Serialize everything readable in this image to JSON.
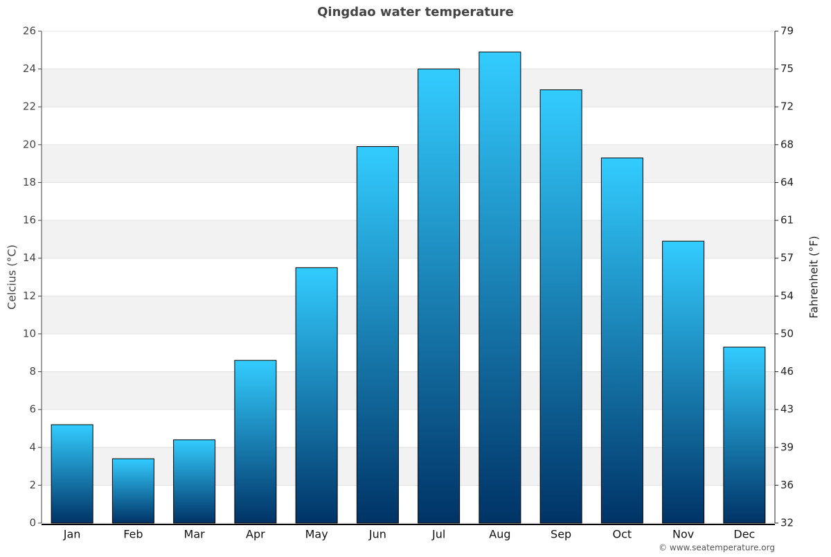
{
  "chart_data": {
    "type": "bar",
    "title": "Qingdao water temperature",
    "categories": [
      "Jan",
      "Feb",
      "Mar",
      "Apr",
      "May",
      "Jun",
      "Jul",
      "Aug",
      "Sep",
      "Oct",
      "Nov",
      "Dec"
    ],
    "values": [
      5.2,
      3.4,
      4.4,
      8.6,
      13.5,
      19.9,
      24.0,
      24.9,
      22.9,
      19.3,
      14.9,
      9.3
    ],
    "color": [
      "#33ccff",
      "#003366"
    ],
    "ylabel": "Celcius (°C)",
    "y2label": "Fahrenheit (°F)",
    "ylim": [
      0,
      26
    ],
    "yticks": [
      0,
      2,
      4,
      6,
      8,
      10,
      12,
      14,
      16,
      18,
      20,
      22,
      24,
      26
    ],
    "y2lim": [
      32,
      78.8
    ],
    "y2ticks": [
      32,
      {
        "value": 35.6,
        "label": "36"
      },
      {
        "value": 39.2,
        "label": "39"
      },
      {
        "value": 42.8,
        "label": "43"
      },
      {
        "value": 46.4,
        "label": "46"
      },
      50,
      {
        "value": 53.6,
        "label": "54"
      },
      {
        "value": 57.2,
        "label": "57"
      },
      {
        "value": 60.8,
        "label": "61"
      },
      {
        "value": 64.4,
        "label": "64"
      },
      68,
      {
        "value": 71.6,
        "label": "72"
      },
      {
        "value": 75.2,
        "label": "75"
      },
      {
        "value": 78.8,
        "label": "79"
      }
    ],
    "grid": true,
    "credit": "© www.seatemperature.org"
  }
}
